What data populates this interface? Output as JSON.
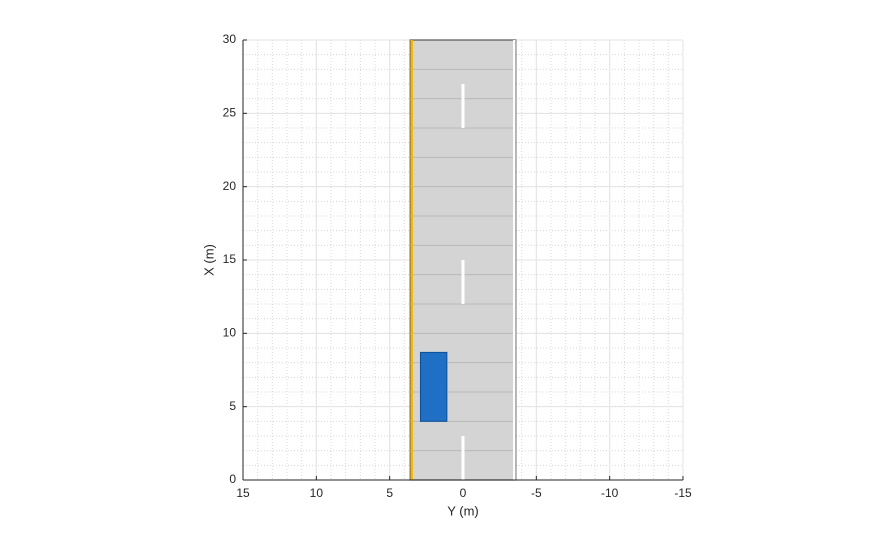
{
  "chart_data": {
    "type": "driving-scenario",
    "xlabel": "Y (m)",
    "ylabel": "X (m)",
    "xlim": [
      15,
      -15
    ],
    "ylim": [
      0,
      30
    ],
    "xticks": [
      15,
      10,
      5,
      0,
      -5,
      -10,
      -15
    ],
    "yticks": [
      0,
      5,
      10,
      15,
      20,
      25,
      30
    ],
    "grid": true,
    "minor_grid": true,
    "road": {
      "edges": [
        3.6,
        -3.6
      ],
      "color": "#d4d4d4"
    },
    "lane_edges": [
      {
        "y": 3.6,
        "color": "#f2b705"
      },
      {
        "y": -3.6,
        "color": "#ffffff"
      }
    ],
    "lane_dashes": {
      "y": 0,
      "color": "#ffffff",
      "segments": [
        [
          0,
          3
        ],
        [
          12,
          15
        ],
        [
          24,
          27
        ]
      ]
    },
    "vehicle": {
      "x": [
        4,
        8.7
      ],
      "y": [
        2.9,
        1.1
      ],
      "color": "#1f6fc5"
    }
  }
}
